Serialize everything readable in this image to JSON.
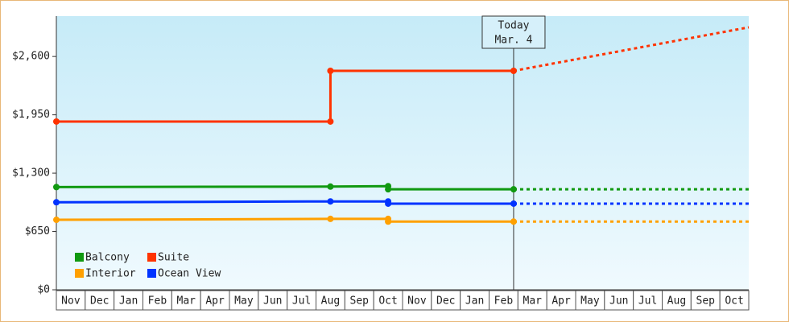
{
  "chart_data": {
    "type": "line",
    "months": [
      "Nov",
      "Dec",
      "Jan",
      "Feb",
      "Mar",
      "Apr",
      "May",
      "Jun",
      "Jul",
      "Aug",
      "Sep",
      "Oct",
      "Nov",
      "Dec",
      "Jan",
      "Feb",
      "Mar",
      "Apr",
      "May",
      "Jun",
      "Jul",
      "Aug",
      "Sep",
      "Oct"
    ],
    "xlim": [
      0,
      24
    ],
    "ylim": [
      0,
      3050
    ],
    "yticks": [
      {
        "value": 0,
        "label": "$0"
      },
      {
        "value": 650,
        "label": "$650"
      },
      {
        "value": 1300,
        "label": "$1,300"
      },
      {
        "value": 1950,
        "label": "$1,950"
      },
      {
        "value": 2600,
        "label": "$2,600"
      }
    ],
    "today": {
      "x": 15.85,
      "label": "Today",
      "date": "Mar. 4"
    },
    "series": [
      {
        "name": "Balcony",
        "color": "#119911",
        "x": [
          0,
          9.5,
          11.5,
          11.5,
          15.85
        ],
        "values": [
          1145,
          1150,
          1155,
          1120,
          1120
        ],
        "projected": 1120
      },
      {
        "name": "Suite",
        "color": "#ff3300",
        "x": [
          0,
          9.5,
          9.5,
          15.85
        ],
        "values": [
          1875,
          1875,
          2440,
          2440
        ],
        "projected": 2925
      },
      {
        "name": "Interior",
        "color": "#ffa000",
        "x": [
          0,
          9.5,
          11.5,
          11.5,
          15.85
        ],
        "values": [
          780,
          790,
          790,
          760,
          760
        ],
        "projected": 760
      },
      {
        "name": "Ocean View",
        "color": "#0033ff",
        "x": [
          0,
          9.5,
          11.5,
          11.5,
          15.85
        ],
        "values": [
          975,
          985,
          985,
          960,
          960
        ],
        "projected": 960
      }
    ]
  }
}
